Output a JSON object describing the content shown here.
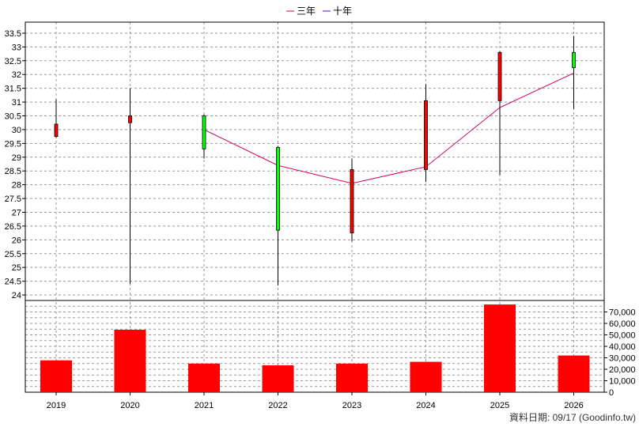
{
  "chart_data": [
    {
      "type": "candlestick",
      "categories": [
        "2019",
        "2020",
        "2021",
        "2022",
        "2023",
        "2024",
        "2025",
        "2026"
      ],
      "ohlc": [
        {
          "open": 29.75,
          "high": 31.1,
          "low": 29.7,
          "close": 30.2
        },
        {
          "open": 30.25,
          "high": 31.5,
          "low": 24.4,
          "close": 30.5
        },
        {
          "open": 30.5,
          "high": 30.55,
          "low": 28.95,
          "close": 29.3
        },
        {
          "open": 29.35,
          "high": 29.4,
          "low": 24.35,
          "close": 26.35
        },
        {
          "open": 26.25,
          "high": 28.95,
          "low": 25.95,
          "close": 28.55
        },
        {
          "open": 28.55,
          "high": 31.65,
          "low": 28.1,
          "close": 31.05
        },
        {
          "open": 31.05,
          "high": 32.85,
          "low": 28.35,
          "close": 32.8
        },
        {
          "open": 32.8,
          "high": 33.4,
          "low": 30.75,
          "close": 32.25
        }
      ],
      "up_color": "#ff0000",
      "down_color": "#00ff00",
      "series": [
        {
          "name": "三年",
          "color": "#cc0066",
          "values": [
            null,
            null,
            30.0,
            28.7,
            28.05,
            28.65,
            30.8,
            32.05
          ]
        },
        {
          "name": "十年",
          "color": "#6600cc",
          "values": [
            null,
            null,
            null,
            null,
            null,
            null,
            null,
            null
          ]
        }
      ],
      "yticks": [
        "24",
        "24.5",
        "25",
        "25.5",
        "26",
        "26.5",
        "27",
        "27.5",
        "28",
        "28.5",
        "29",
        "29.5",
        "30",
        "30.5",
        "31",
        "31.5",
        "32",
        "32.5",
        "33",
        "33.5"
      ],
      "ylim": [
        23.8,
        33.9
      ],
      "legend_position": "top-center",
      "grid": true
    },
    {
      "type": "bar",
      "categories": [
        "2019",
        "2020",
        "2021",
        "2022",
        "2023",
        "2024",
        "2025",
        "2026"
      ],
      "values": [
        27800,
        54500,
        25000,
        23500,
        25000,
        26500,
        76500,
        32000
      ],
      "color": "#ff0000",
      "yticks": [
        "0",
        "10,000",
        "20,000",
        "30,000",
        "40,000",
        "50,000",
        "60,000",
        "70,000"
      ],
      "ylim": [
        0,
        80000
      ],
      "grid": true
    }
  ],
  "footer": {
    "source": "資料日期: 09/17  (Goodinfo.tw)"
  }
}
